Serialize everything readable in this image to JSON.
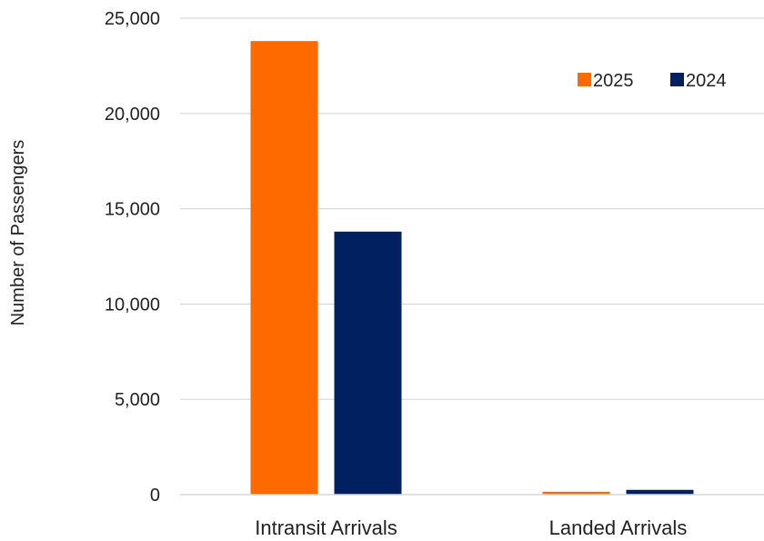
{
  "chart_data": {
    "type": "bar",
    "categories": [
      "Intransit Arrivals",
      "Landed Arrivals"
    ],
    "series": [
      {
        "name": "2025",
        "color": "#ff6a00",
        "values": [
          23800,
          150
        ]
      },
      {
        "name": "2024",
        "color": "#002060",
        "values": [
          13800,
          250
        ]
      }
    ],
    "ylabel": "Number of Passengers",
    "ylim": [
      0,
      25000
    ],
    "yticks": [
      0,
      5000,
      10000,
      15000,
      20000,
      25000
    ],
    "ytick_labels": [
      "0",
      "5,000",
      "10,000",
      "15,000",
      "20,000",
      "25,000"
    ],
    "grid": true,
    "legend_position": "top-right"
  }
}
